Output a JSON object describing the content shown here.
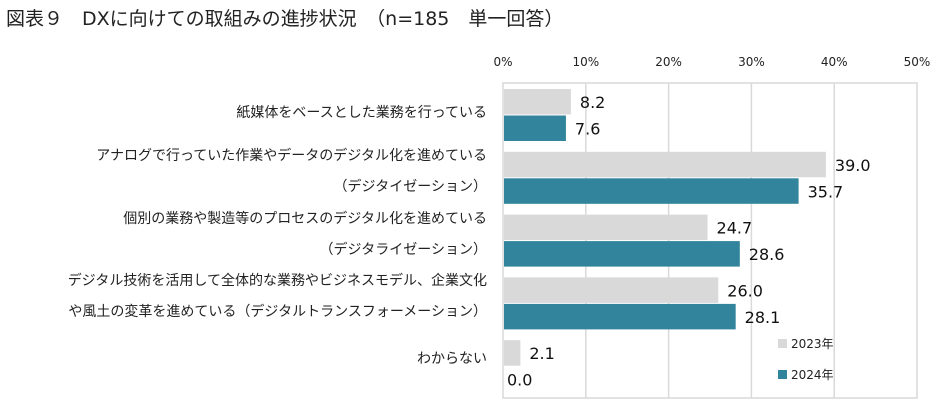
{
  "title": "図表９　DXに向けての取組みの進捗状況　（n=185　単一回答）",
  "chart_data": {
    "type": "bar",
    "orientation": "horizontal",
    "title": "図表９　DXに向けての取組みの進捗状況　（n=185　単一回答）",
    "categories": [
      [
        "紙媒体をベースとした業務を行っている"
      ],
      [
        "アナログで行っていた作業やデータのデジタル化を進めている",
        "（デジタイゼーション）"
      ],
      [
        "個別の業務や製造等のプロセスのデジタル化を進めている",
        "（デジタライゼーション）"
      ],
      [
        "デジタル技術を活用して全体的な業務やビジネスモデル、企業文化",
        "や風土の変革を進めている（デジタルトランスフォーメーション）"
      ],
      [
        "わからない"
      ]
    ],
    "series": [
      {
        "name": "2023年",
        "color": "#d9d9d9",
        "values": [
          8.2,
          39.0,
          24.7,
          26.0,
          2.1
        ]
      },
      {
        "name": "2024年",
        "color": "#31849b",
        "values": [
          7.6,
          35.7,
          28.6,
          28.1,
          0.0
        ]
      }
    ],
    "xlim": [
      0,
      50
    ],
    "ticks": [
      "0%",
      "10%",
      "20%",
      "30%",
      "40%",
      "50%"
    ],
    "tick_values": [
      0,
      10,
      20,
      30,
      40,
      50
    ],
    "grid": true,
    "legend": "bottom-right"
  }
}
